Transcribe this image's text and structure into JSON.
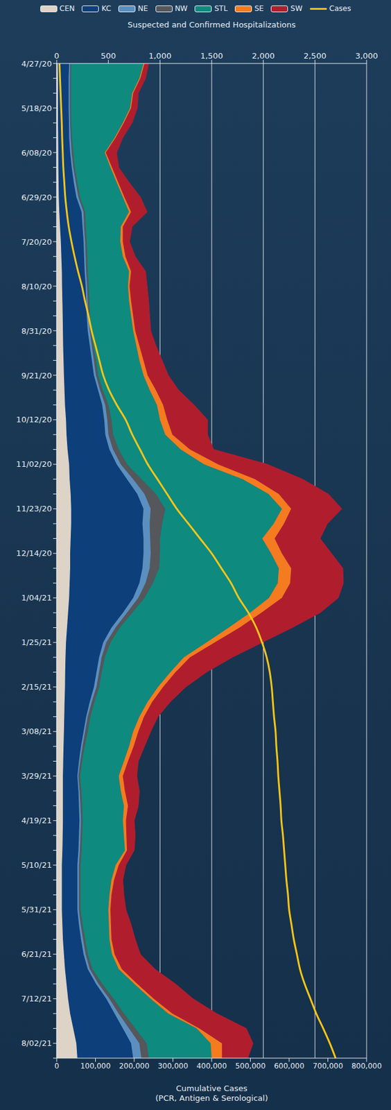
{
  "chart_data": {
    "type": "area",
    "orientation": "horizontal",
    "stacked": true,
    "grid": true,
    "legend": "top",
    "ylabel": "Suspected and Confirmed Hospitalizations",
    "y2label": "Cumulative Cases (PCR, Antigen & Serological)",
    "ylim": [
      0,
      3000
    ],
    "yticks": [
      0,
      500,
      {
        "value": 1000,
        "label": "1,000"
      },
      {
        "value": 1500,
        "label": "1,500"
      },
      {
        "value": 2000,
        "label": "2,000"
      },
      {
        "value": 2500,
        "label": "2,500"
      },
      {
        "value": 3000,
        "label": "3,000"
      }
    ],
    "y2lim": [
      0,
      800000
    ],
    "y2ticks": [
      0,
      {
        "value": 100000,
        "label": "100,000"
      },
      {
        "value": 200000,
        "label": "200,000"
      },
      {
        "value": 300000,
        "label": "300,000"
      },
      {
        "value": 400000,
        "label": "400,000"
      },
      {
        "value": 500000,
        "label": "500,000"
      },
      {
        "value": 600000,
        "label": "600,000"
      },
      {
        "value": 700000,
        "label": "700,000"
      },
      {
        "value": 800000,
        "label": "800,000"
      }
    ],
    "categories": [
      "4/27/20",
      null,
      null,
      "5/18/20",
      null,
      null,
      "6/08/20",
      null,
      null,
      "6/29/20",
      null,
      null,
      "7/20/20",
      null,
      null,
      "8/10/20",
      null,
      null,
      "8/31/20",
      null,
      null,
      "9/21/20",
      null,
      null,
      "10/12/20",
      null,
      null,
      "11/02/20",
      null,
      null,
      "11/23/20",
      null,
      null,
      "12/14/20",
      null,
      null,
      "1/04/21",
      null,
      null,
      "1/25/21",
      null,
      null,
      "2/15/21",
      null,
      null,
      "3/08/21",
      null,
      null,
      "3/29/21",
      null,
      null,
      "4/19/21",
      null,
      null,
      "5/10/21",
      null,
      null,
      "5/31/21",
      null,
      null,
      "6/21/21",
      null,
      null,
      "7/12/21",
      null,
      null,
      "8/02/21",
      null
    ],
    "series": [
      {
        "name": "CEN",
        "type": "area",
        "color": "#ddd3c7",
        "values": [
          10,
          12,
          12,
          12,
          12,
          14,
          15,
          16,
          18,
          20,
          25,
          32,
          40,
          45,
          50,
          52,
          55,
          58,
          60,
          62,
          66,
          70,
          75,
          80,
          90,
          95,
          105,
          120,
          125,
          135,
          140,
          140,
          135,
          130,
          130,
          125,
          120,
          110,
          100,
          90,
          85,
          82,
          80,
          76,
          73,
          70,
          66,
          63,
          60,
          60,
          60,
          60,
          58,
          55,
          50,
          50,
          50,
          50,
          55,
          60,
          70,
          80,
          95,
          110,
          130,
          160,
          190,
          200
        ]
      },
      {
        "name": "KC",
        "type": "area",
        "color": "#0d3f7a",
        "values": [
          110,
          103,
          103,
          103,
          106,
          106,
          115,
          129,
          147,
          170,
          215,
          218,
          220,
          220,
          220,
          228,
          230,
          232,
          240,
          258,
          274,
          290,
          325,
          360,
          370,
          375,
          405,
          460,
          555,
          645,
          700,
          690,
          705,
          710,
          700,
          675,
          620,
          530,
          430,
          360,
          325,
          303,
          280,
          244,
          212,
          190,
          169,
          152,
          140,
          150,
          155,
          160,
          157,
          155,
          150,
          150,
          150,
          150,
          160,
          175,
          190,
          220,
          285,
          370,
          430,
          480,
          530,
          540
        ]
      },
      {
        "name": "NE",
        "type": "area",
        "color": "#5b8fc0",
        "values": [
          10,
          13,
          13,
          13,
          12,
          15,
          15,
          15,
          20,
          20,
          20,
          15,
          15,
          15,
          15,
          15,
          15,
          20,
          20,
          20,
          20,
          20,
          20,
          30,
          30,
          30,
          35,
          40,
          60,
          70,
          70,
          70,
          65,
          70,
          70,
          60,
          50,
          40,
          40,
          30,
          25,
          25,
          25,
          20,
          15,
          15,
          15,
          13,
          10,
          12,
          15,
          15,
          15,
          15,
          15,
          15,
          15,
          15,
          17,
          20,
          20,
          20,
          25,
          30,
          40,
          60,
          80,
          80
        ]
      },
      {
        "name": "NW",
        "type": "area",
        "color": "#55575a",
        "values": [
          10,
          10,
          10,
          10,
          10,
          13,
          15,
          15,
          15,
          15,
          15,
          15,
          15,
          15,
          15,
          15,
          15,
          10,
          10,
          15,
          20,
          20,
          25,
          30,
          40,
          45,
          55,
          60,
          80,
          110,
          140,
          120,
          95,
          90,
          90,
          70,
          60,
          50,
          40,
          40,
          30,
          25,
          25,
          25,
          25,
          25,
          20,
          17,
          15,
          16,
          15,
          15,
          15,
          15,
          15,
          15,
          15,
          15,
          18,
          20,
          20,
          25,
          35,
          40,
          50,
          60,
          70,
          70
        ]
      },
      {
        "name": "STL",
        "type": "area",
        "color": "#0e8a7f",
        "values": [
          700,
          662,
          592,
          572,
          500,
          412,
          305,
          345,
          380,
          415,
          425,
          340,
          325,
          345,
          400,
          380,
          385,
          400,
          410,
          415,
          420,
          440,
          455,
          470,
          470,
          505,
          600,
          745,
          980,
          1090,
          1130,
          1080,
          990,
          1075,
          1160,
          1210,
          1205,
          1140,
          1055,
          930,
          765,
          665,
          570,
          515,
          475,
          440,
          430,
          405,
          375,
          382,
          405,
          390,
          405,
          420,
          340,
          300,
          280,
          270,
          255,
          235,
          235,
          255,
          310,
          360,
          430,
          595,
          620,
          610
        ]
      },
      {
        "name": "SE",
        "type": "area",
        "color": "#f47b20",
        "values": [
          10,
          10,
          10,
          10,
          10,
          10,
          10,
          15,
          15,
          15,
          20,
          20,
          25,
          25,
          20,
          15,
          20,
          20,
          20,
          30,
          40,
          40,
          60,
          60,
          70,
          70,
          90,
          135,
          120,
          100,
          90,
          100,
          120,
          105,
          120,
          120,
          125,
          110,
          105,
          80,
          60,
          50,
          50,
          45,
          45,
          50,
          45,
          40,
          40,
          40,
          40,
          30,
          25,
          20,
          30,
          25,
          20,
          20,
          20,
          20,
          25,
          30,
          30,
          30,
          40,
          25,
          110,
          100
        ]
      },
      {
        "name": "SW",
        "type": "area",
        "color": "#b01e2e",
        "values": [
          40,
          50,
          50,
          60,
          80,
          70,
          105,
          65,
          105,
          155,
          155,
          90,
          65,
          95,
          140,
          170,
          170,
          160,
          150,
          160,
          180,
          200,
          220,
          300,
          390,
          340,
          230,
          480,
          460,
          480,
          490,
          420,
          440,
          480,
          500,
          515,
          545,
          570,
          510,
          460,
          410,
          300,
          220,
          175,
          135,
          120,
          105,
          100,
          135,
          140,
          100,
          80,
          85,
          70,
          70,
          85,
          120,
          150,
          195,
          230,
          250,
          320,
          370,
          380,
          430,
          455,
          300,
          250
        ]
      },
      {
        "name": "Cases",
        "type": "line",
        "axis": "y2",
        "color": "#f5c518",
        "values": [
          7000,
          8500,
          10000,
          11500,
          13000,
          14000,
          15500,
          17000,
          19500,
          22000,
          26000,
          31000,
          38000,
          46000,
          55000,
          65000,
          73000,
          82000,
          90000,
          100000,
          110000,
          120000,
          135000,
          155000,
          178000,
          195000,
          215000,
          235000,
          260000,
          285000,
          310000,
          340000,
          370000,
          400000,
          425000,
          450000,
          470000,
          495000,
          515000,
          530000,
          542000,
          550000,
          555000,
          558000,
          561000,
          565000,
          567000,
          570000,
          572000,
          575000,
          578000,
          580000,
          584000,
          587000,
          590000,
          593000,
          597000,
          600000,
          606000,
          612000,
          620000,
          628000,
          640000,
          655000,
          670000,
          688000,
          705000,
          720000
        ]
      }
    ]
  }
}
